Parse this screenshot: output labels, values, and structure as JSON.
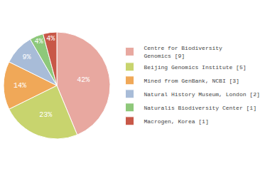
{
  "chart_data": {
    "type": "pie",
    "categories": [
      "Centre for Biodiversity\nGenomics [9]",
      "Beijing Genomics Institute [5]",
      "Mined from GenBank, NCBI [3]",
      "Natural History Museum, London [2]",
      "Naturalis Biodiversity Center [1]",
      "Macrogen, Korea [1]"
    ],
    "values": [
      42,
      23,
      14,
      9,
      4,
      4
    ],
    "value_labels": [
      "42%",
      "23%",
      "14%",
      "9%",
      "4%",
      "4%"
    ],
    "colors": [
      "#e8a8a0",
      "#c8d46e",
      "#f0a858",
      "#a8bcd8",
      "#8ec87a",
      "#c85848"
    ],
    "data_labels": true,
    "legend": "right"
  }
}
